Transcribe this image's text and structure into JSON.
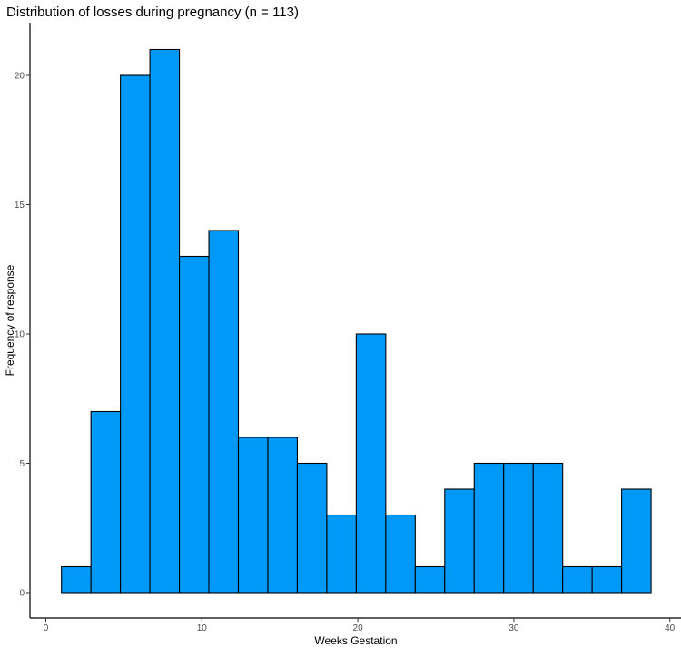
{
  "chart_data": {
    "type": "bar",
    "title": "Distribution of losses during pregnancy (n = 113)",
    "xlabel": "Weeks Gestation",
    "ylabel": "Frequency of response",
    "xlim": [
      0,
      40
    ],
    "ylim": [
      0,
      21
    ],
    "x_ticks": [
      0,
      10,
      20,
      30,
      40
    ],
    "y_ticks": [
      0,
      5,
      10,
      15,
      20
    ],
    "bin_width": 1.89,
    "bars": [
      {
        "x_start": 1.0,
        "x_end": 2.89,
        "value": 1
      },
      {
        "x_start": 2.89,
        "x_end": 4.78,
        "value": 7
      },
      {
        "x_start": 4.78,
        "x_end": 6.67,
        "value": 20
      },
      {
        "x_start": 6.67,
        "x_end": 8.56,
        "value": 21
      },
      {
        "x_start": 8.56,
        "x_end": 10.45,
        "value": 13
      },
      {
        "x_start": 10.45,
        "x_end": 12.34,
        "value": 14
      },
      {
        "x_start": 12.34,
        "x_end": 14.23,
        "value": 6
      },
      {
        "x_start": 14.23,
        "x_end": 16.12,
        "value": 6
      },
      {
        "x_start": 16.12,
        "x_end": 18.01,
        "value": 5
      },
      {
        "x_start": 18.01,
        "x_end": 19.9,
        "value": 3
      },
      {
        "x_start": 19.9,
        "x_end": 21.79,
        "value": 10
      },
      {
        "x_start": 21.79,
        "x_end": 23.68,
        "value": 3
      },
      {
        "x_start": 23.68,
        "x_end": 25.57,
        "value": 1
      },
      {
        "x_start": 25.57,
        "x_end": 27.46,
        "value": 4
      },
      {
        "x_start": 27.46,
        "x_end": 29.35,
        "value": 5
      },
      {
        "x_start": 29.35,
        "x_end": 31.24,
        "value": 5
      },
      {
        "x_start": 31.24,
        "x_end": 33.13,
        "value": 5
      },
      {
        "x_start": 33.13,
        "x_end": 35.02,
        "value": 1
      },
      {
        "x_start": 35.02,
        "x_end": 36.91,
        "value": 1
      },
      {
        "x_start": 36.91,
        "x_end": 38.8,
        "value": 4
      }
    ],
    "colors": {
      "bar_fill": "#0099F8",
      "bar_stroke": "#000000"
    },
    "grid": false,
    "legend": "none"
  }
}
